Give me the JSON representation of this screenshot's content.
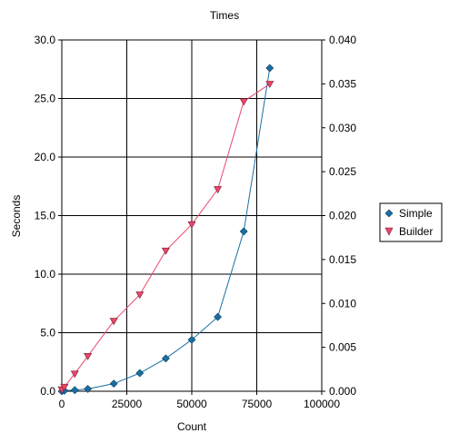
{
  "chart_data": {
    "type": "line",
    "title": "Times",
    "xlabel": "Count",
    "ylabel": "Seconds",
    "xlim": [
      0,
      100000
    ],
    "ylim": [
      0,
      30
    ],
    "y2lim": [
      0,
      0.04
    ],
    "grid": true,
    "legend_position": "right",
    "x_ticks": [
      "0",
      "25000",
      "50000",
      "75000",
      "100000"
    ],
    "y_ticks": [
      "0.0",
      "5.0",
      "10.0",
      "15.0",
      "20.0",
      "25.0",
      "30.0"
    ],
    "y2_ticks": [
      "0.000",
      "0.005",
      "0.010",
      "0.015",
      "0.020",
      "0.025",
      "0.030",
      "0.035",
      "0.040"
    ],
    "series": [
      {
        "name": "Simple",
        "axis": "left",
        "color": "#1a6fa3",
        "marker": "diamond",
        "x": [
          0,
          1000,
          5000,
          10000,
          20000,
          30000,
          40000,
          50000,
          60000,
          70000,
          80000
        ],
        "values": [
          0.0,
          0.05,
          0.1,
          0.2,
          0.65,
          1.55,
          2.8,
          4.4,
          6.35,
          13.65,
          27.6
        ]
      },
      {
        "name": "Builder",
        "axis": "right",
        "color": "#e8476a",
        "marker": "triangle-down",
        "x": [
          0,
          1000,
          5000,
          10000,
          20000,
          30000,
          40000,
          50000,
          60000,
          70000,
          80000
        ],
        "values": [
          0.0002,
          0.0005,
          0.002,
          0.004,
          0.008,
          0.011,
          0.016,
          0.019,
          0.023,
          0.033,
          0.035
        ]
      }
    ]
  }
}
